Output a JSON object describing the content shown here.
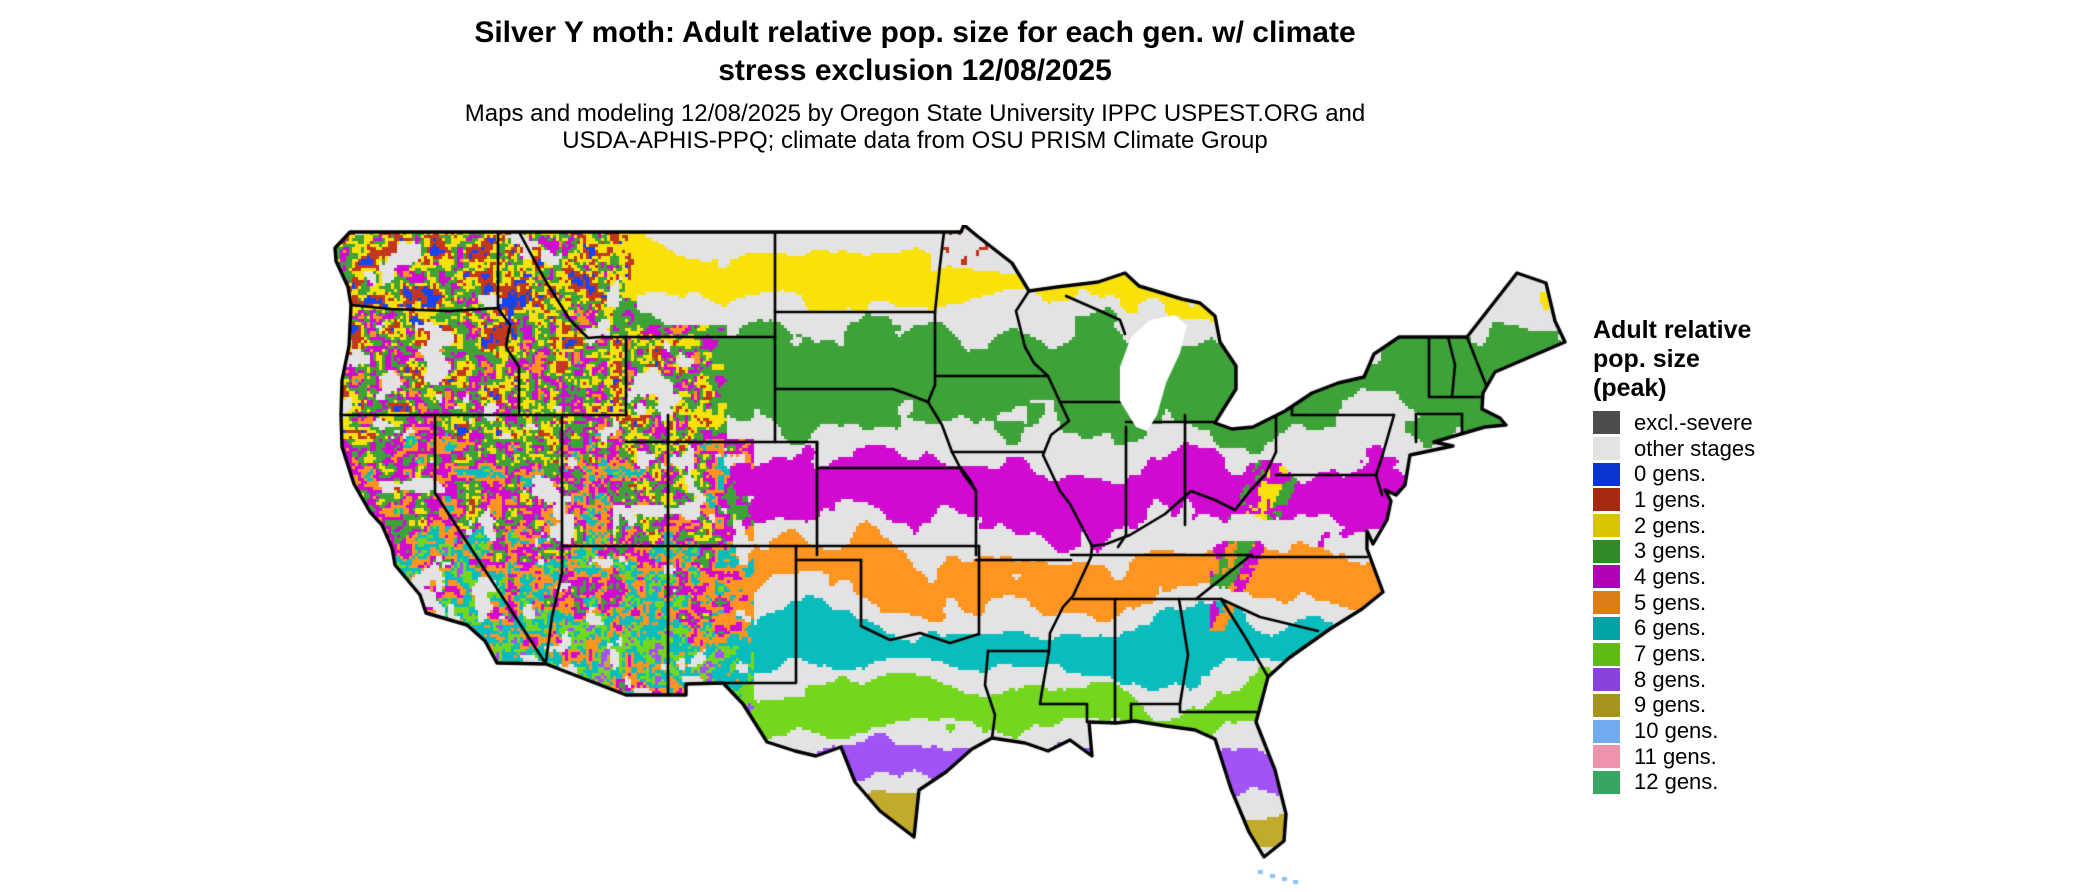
{
  "header": {
    "title_line1": "Silver Y moth: Adult relative pop. size for each gen. w/ climate",
    "title_line2": "stress exclusion 12/08/2025",
    "subtitle_line1": "Maps and modeling 12/08/2025 by Oregon State University IPPC USPEST.ORG and",
    "subtitle_line2": "USDA-APHIS-PPQ; climate data from OSU PRISM Climate Group"
  },
  "legend": {
    "title_lines": [
      "Adult relative",
      "pop. size",
      "(peak)"
    ],
    "entries": [
      {
        "label": "excl.-severe",
        "color": "#4d4d4d"
      },
      {
        "label": "other stages",
        "color": "#e3e3e3"
      },
      {
        "label": "0 gens.",
        "color": "#0a36d0"
      },
      {
        "label": "1 gens.",
        "color": "#a62a12"
      },
      {
        "label": "2 gens.",
        "color": "#d9c400"
      },
      {
        "label": "3 gens.",
        "color": "#2e8b2a"
      },
      {
        "label": "4 gens.",
        "color": "#b400b4"
      },
      {
        "label": "5 gens.",
        "color": "#dd7e14"
      },
      {
        "label": "6 gens.",
        "color": "#00a3a3"
      },
      {
        "label": "7 gens.",
        "color": "#5fba12"
      },
      {
        "label": "8 gens.",
        "color": "#8a42d8"
      },
      {
        "label": "9 gens.",
        "color": "#a6921f"
      },
      {
        "label": "10 gens.",
        "color": "#73aaf0"
      },
      {
        "label": "11 gens.",
        "color": "#ef93ad"
      },
      {
        "label": "12 gens.",
        "color": "#38a564"
      }
    ]
  },
  "map": {
    "region_label": "Continental United States",
    "ocean_color": "#ffffff",
    "no_peak_color": "#e3e3e3",
    "state_border_color": "#000000",
    "band_sequence_north_to_south": [
      "2 gens.",
      "3 gens.",
      "4 gens.",
      "5 gens.",
      "6 gens.",
      "7 gens.",
      "8 gens.",
      "9 gens.",
      "10 gens."
    ],
    "mountain_west_mosaic_classes": [
      "0 gens.",
      "1 gens.",
      "2 gens.",
      "3 gens.",
      "4 gens.",
      "5 gens.",
      "6 gens.",
      "7 gens.",
      "8 gens."
    ]
  }
}
